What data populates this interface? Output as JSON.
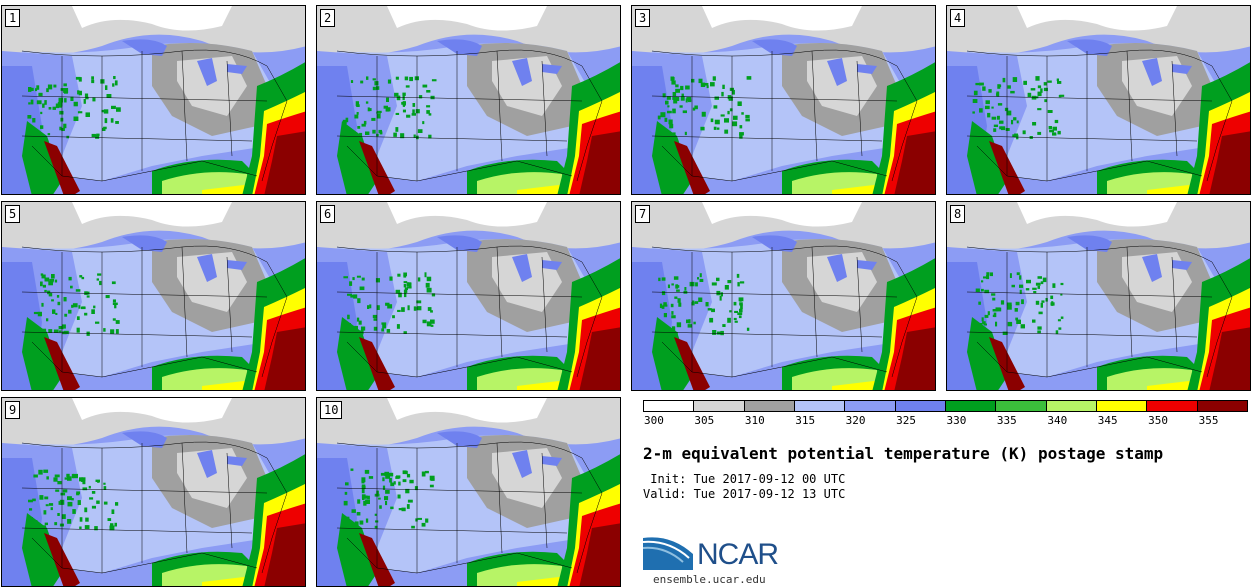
{
  "panels": [
    {
      "label": "1"
    },
    {
      "label": "2"
    },
    {
      "label": "3"
    },
    {
      "label": "4"
    },
    {
      "label": "5"
    },
    {
      "label": "6"
    },
    {
      "label": "7"
    },
    {
      "label": "8"
    },
    {
      "label": "9"
    },
    {
      "label": "10"
    }
  ],
  "colorbar": {
    "bins": [
      {
        "color": "#ffffff"
      },
      {
        "color": "#d6d6d6"
      },
      {
        "color": "#a0a0a0"
      },
      {
        "color": "#b4c4f8"
      },
      {
        "color": "#8c9cf4"
      },
      {
        "color": "#6f81ef"
      },
      {
        "color": "#009f1f"
      },
      {
        "color": "#3bbe3b"
      },
      {
        "color": "#b7f466"
      },
      {
        "color": "#ffff00"
      },
      {
        "color": "#ee0000"
      },
      {
        "color": "#8b0000"
      }
    ],
    "ticks": [
      "300",
      "305",
      "310",
      "315",
      "320",
      "325",
      "330",
      "335",
      "340",
      "345",
      "350",
      "355"
    ]
  },
  "title": "2-m equivalent potential temperature (K) postage stamp",
  "init": " Init: Tue 2017-09-12 00 UTC",
  "valid": "Valid: Tue 2017-09-12 13 UTC",
  "logo": {
    "text": "NCAR",
    "color": "#1f4f8a"
  },
  "website": "ensemble.ucar.edu"
}
